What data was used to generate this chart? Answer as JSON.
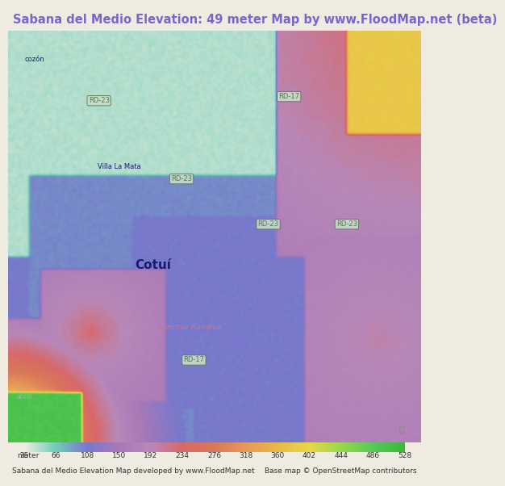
{
  "title": "Sabana del Medio Elevation: 49 meter Map by www.FloodMap.net (beta)",
  "title_color": "#7766cc",
  "title_fontsize": 10.5,
  "colorbar_values": [
    25,
    66,
    108,
    150,
    192,
    234,
    276,
    318,
    360,
    402,
    444,
    486,
    528
  ],
  "colorbar_colors": [
    "#f0ebe0",
    "#6ecfb8",
    "#7878cc",
    "#a878b8",
    "#b888b8",
    "#d86868",
    "#d87858",
    "#e89858",
    "#e8b848",
    "#e8d848",
    "#98d848",
    "#58c858",
    "#38b838"
  ],
  "bottom_left_text": "Sabana del Medio Elevation Map developed by www.FloodMap.net",
  "bottom_right_text": "Base map © OpenStreetMap contributors",
  "meter_label": "meter",
  "bg_color": "#f0ebe0",
  "footer_fontsize": 6.5,
  "tick_fontsize": 6.5,
  "title_bg": "#e8e4d8"
}
